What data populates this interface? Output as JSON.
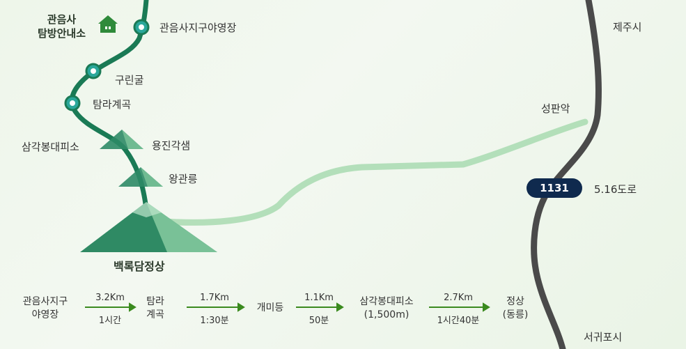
{
  "visitor_center": {
    "line1": "관음사",
    "line2": "탐방안내소"
  },
  "places": {
    "gwaneumsa_camp": "관음사지구야영장",
    "gurin_cave": "구린굴",
    "tamra_valley": "탐라계곡",
    "samgak_shelter": "삼각봉대피소",
    "yongjin_hut": "용진각샘",
    "wanggwan": "왕관릉",
    "summit": "백록담정상",
    "jeju_city": "제주시",
    "seongpanak": "성판악",
    "road_516": "5.16도로",
    "seogwipo": "서귀포시"
  },
  "road_badge": "1131",
  "itinerary": {
    "stops": [
      {
        "line1": "관음사지구",
        "line2": "야영장"
      },
      {
        "line1": "탐라",
        "line2": "계곡"
      },
      {
        "line1": "개미등",
        "line2": ""
      },
      {
        "line1": "삼각봉대피소",
        "line2": "(1,500m)"
      },
      {
        "line1": "정상",
        "line2": "(동릉)"
      }
    ],
    "legs": [
      {
        "distance": "3.2Km",
        "time": "1시간"
      },
      {
        "distance": "1.7Km",
        "time": "1:30분"
      },
      {
        "distance": "1.1Km",
        "time": "50분"
      },
      {
        "distance": "2.7Km",
        "time": "1시간40분"
      }
    ]
  },
  "colors": {
    "trail": "#1a7a55",
    "road": "#4a4a4a",
    "green_path": "#9fd3a8",
    "badge": "#0f2a4e",
    "arrow": "#3a8a1e"
  }
}
